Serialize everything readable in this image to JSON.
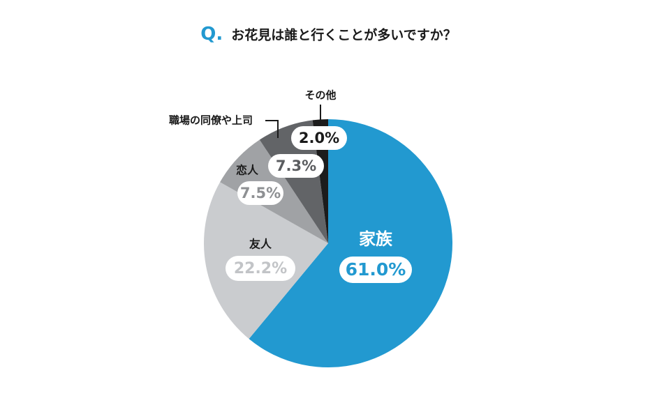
{
  "title": {
    "prefix": "Q.",
    "question": "お花見は誰と行くことが多いですか？"
  },
  "chart_data": {
    "type": "pie",
    "start": "12 o'clock, clockwise",
    "slices": [
      {
        "name": "家族",
        "value": 61.0,
        "label": "61.0%",
        "color": "#2299d0"
      },
      {
        "name": "友人",
        "value": 22.2,
        "label": "22.2%",
        "color": "#cacccf"
      },
      {
        "name": "恋人",
        "value": 7.5,
        "label": "7.5%",
        "color": "#a0a2a5"
      },
      {
        "name": "職場の同僚や上司",
        "value": 7.3,
        "label": "7.3%",
        "color": "#626467"
      },
      {
        "name": "その他",
        "value": 2.0,
        "label": "2.0%",
        "color": "#1c1c1c"
      }
    ]
  }
}
